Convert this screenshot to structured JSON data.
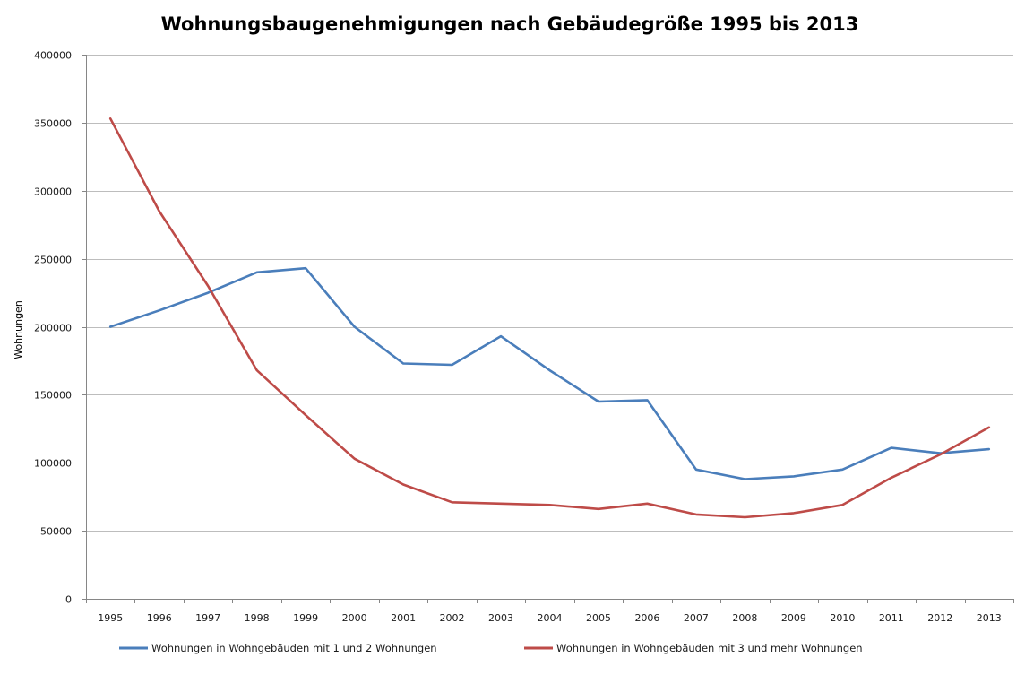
{
  "chart_data": {
    "type": "line",
    "title": "Wohnungsbaugenehmigungen nach Gebäudegröße 1995 bis 2013",
    "xlabel": "",
    "ylabel": "Wohnungen",
    "ylim": [
      0,
      400000
    ],
    "yticks": [
      0,
      50000,
      100000,
      150000,
      200000,
      250000,
      300000,
      350000,
      400000
    ],
    "categories": [
      "1995",
      "1996",
      "1997",
      "1998",
      "1999",
      "2000",
      "2001",
      "2002",
      "2003",
      "2004",
      "2005",
      "2006",
      "2007",
      "2008",
      "2009",
      "2010",
      "2011",
      "2012",
      "2013"
    ],
    "grid": true,
    "legend_position": "bottom",
    "series": [
      {
        "name": "Wohnungen in Wohngebäuden mit 1 und 2 Wohnungen",
        "color": "#4a7ebb",
        "values": [
          200000,
          212000,
          225000,
          240000,
          243000,
          200000,
          173000,
          172000,
          193000,
          168000,
          145000,
          146000,
          95000,
          88000,
          90000,
          95000,
          111000,
          107000,
          110000
        ]
      },
      {
        "name": "Wohnungen in Wohngebäuden mit 3 und mehr Wohnungen",
        "color": "#be4b48",
        "values": [
          353000,
          285000,
          230000,
          168000,
          135000,
          103000,
          84000,
          71000,
          70000,
          69000,
          66000,
          70000,
          62000,
          60000,
          63000,
          69000,
          89000,
          106000,
          126000
        ]
      }
    ]
  }
}
